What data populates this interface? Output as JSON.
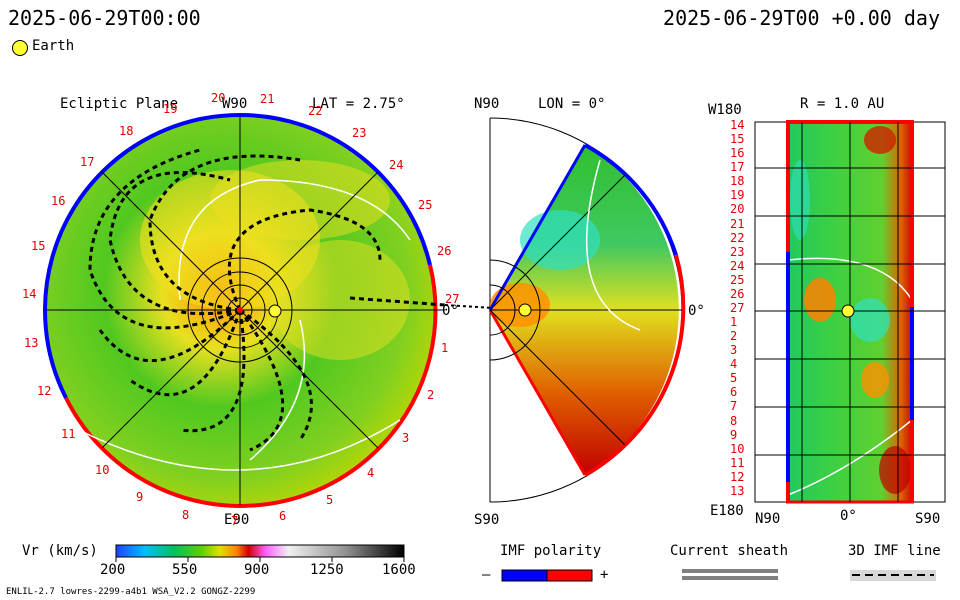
{
  "header": {
    "timestamp_left": "2025-06-29T00:00",
    "timestamp_right": "2025-06-29T00 +0.00 day"
  },
  "legend": {
    "earth_label": "Earth"
  },
  "ecliptic": {
    "title": "Ecliptic Plane",
    "top_label": "W90",
    "bottom_label": "E90",
    "right_label": "0°",
    "lat_label": "LAT = 2.75°",
    "rim_numbers": [
      "20",
      "21",
      "22",
      "23",
      "24",
      "25",
      "26",
      "27",
      "1",
      "2",
      "3",
      "4",
      "5",
      "6",
      "7",
      "8",
      "9",
      "10",
      "11",
      "12",
      "13",
      "14",
      "15",
      "16",
      "17",
      "18",
      "19"
    ]
  },
  "meridional": {
    "top_label": "N90",
    "bottom_label": "S90",
    "lon_label": "LON = 0°",
    "right_label": "0°"
  },
  "synoptic": {
    "title": "R = 1.0 AU",
    "top_left_label": "W180",
    "bottom_left_label": "E180",
    "x_labels": [
      "N90",
      "0°",
      "S90"
    ],
    "y_labels": [
      "14",
      "15",
      "16",
      "17",
      "18",
      "19",
      "20",
      "21",
      "22",
      "23",
      "24",
      "25",
      "26",
      "27",
      "1",
      "2",
      "3",
      "4",
      "5",
      "6",
      "7",
      "8",
      "9",
      "10",
      "11",
      "12",
      "13"
    ]
  },
  "colorbar": {
    "title": "Vr (km/s)",
    "ticks": [
      "200",
      "550",
      "900",
      "1250",
      "1600"
    ],
    "range": [
      200,
      1600
    ],
    "colors": [
      "#2040ff",
      "#00c0ff",
      "#00c060",
      "#60d000",
      "#e0e000",
      "#ff8000",
      "#d00000",
      "#ff60ff",
      "#f0f0f0",
      "#909090",
      "#000000"
    ]
  },
  "imf_polarity": {
    "title": "IMF polarity",
    "minus": "–",
    "plus": "+",
    "neg_color": "#0000ff",
    "pos_color": "#ff0000"
  },
  "current_sheath": {
    "title": "Current sheath",
    "color": "#808080"
  },
  "imf_line": {
    "title": "3D IMF line"
  },
  "footer": {
    "model_info": "ENLIL-2.7 lowres-2299-a4b1 WSA_V2.2 GONGZ-2299"
  }
}
